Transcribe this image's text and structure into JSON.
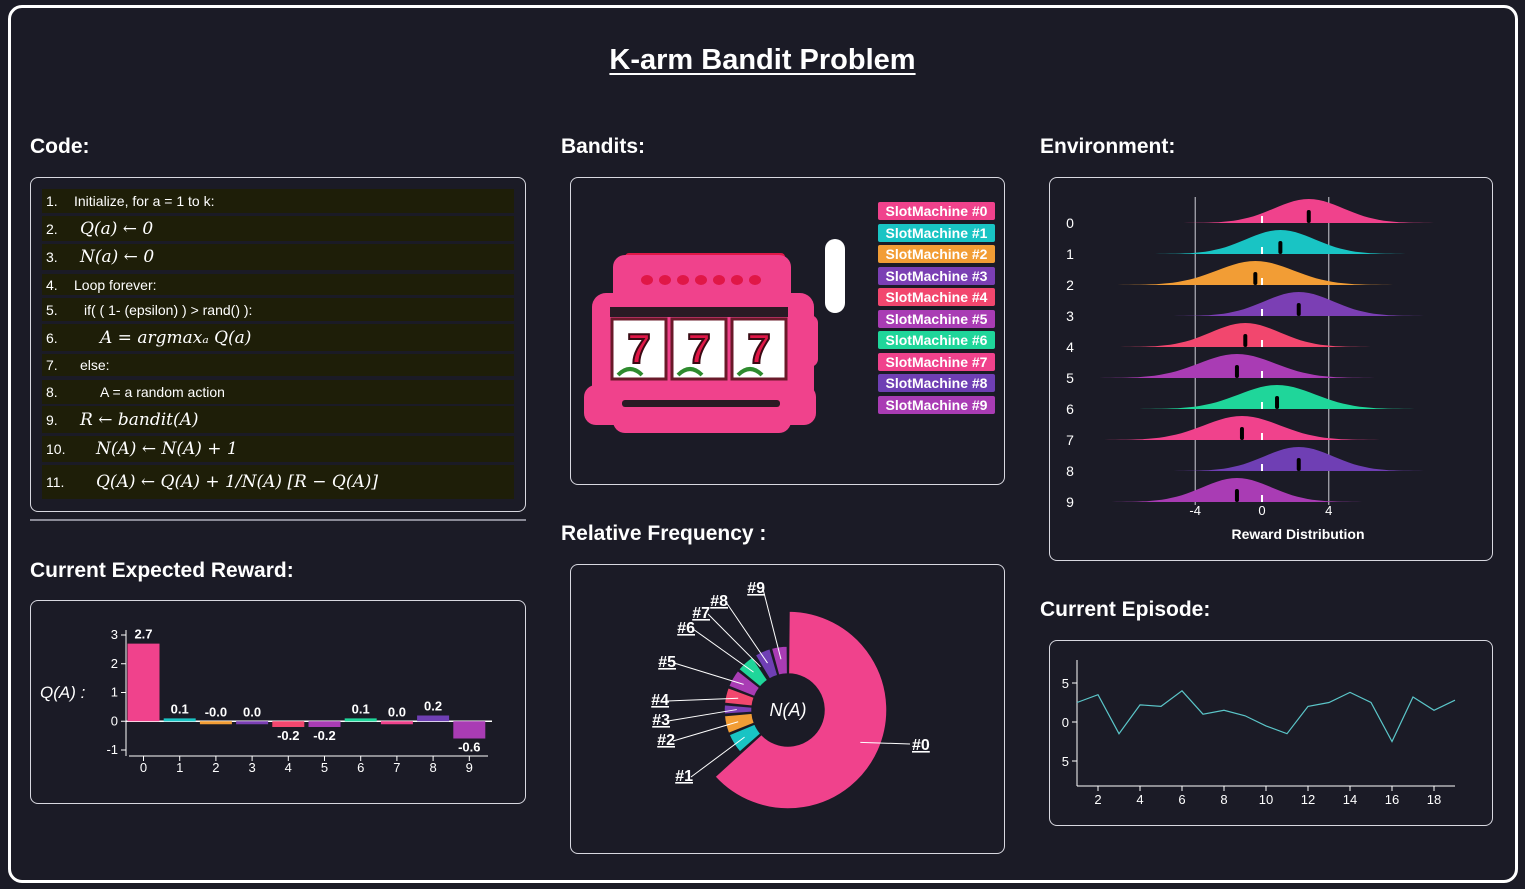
{
  "page": {
    "title": "K-arm Bandit Problem",
    "sections": {
      "code": "Code:",
      "bandits": "Bandits:",
      "environment": "Environment:",
      "expected_reward": "Current Expected Reward:",
      "relative_frequency": "Relative Frequency :",
      "current_episode": "Current Episode:"
    }
  },
  "code_lines": [
    {
      "num": "1.",
      "text": "Initialize, for a = 1 to k:"
    },
    {
      "num": "2.",
      "text": "Q(a) ← 0"
    },
    {
      "num": "3.",
      "text": "N(a) ← 0"
    },
    {
      "num": "4.",
      "text": "Loop forever:"
    },
    {
      "num": "5.",
      "text": "if( ( 1- (epsilon) ) > rand() ):"
    },
    {
      "num": "6.",
      "text": "A = argmaxₐ Q(a)"
    },
    {
      "num": "7.",
      "text": "else:"
    },
    {
      "num": "8.",
      "text": "A = a random action"
    },
    {
      "num": "9.",
      "text": "R ← bandit(A)"
    },
    {
      "num": "10.",
      "text": "N(A) ← N(A) + 1"
    },
    {
      "num": "11.",
      "text": "Q(A) ← Q(A) + 1/N(A) [R − Q(A)]"
    }
  ],
  "colors": [
    "#f0428c",
    "#19c4c4",
    "#f29d35",
    "#7b3fb4",
    "#f2476e",
    "#a93cb4",
    "#1fd69a",
    "#f0428c",
    "#6f3fb4",
    "#a93cb4"
  ],
  "slot_machines": [
    "SlotMachine #0",
    "SlotMachine #1",
    "SlotMachine #2",
    "SlotMachine #3",
    "SlotMachine #4",
    "SlotMachine #5",
    "SlotMachine #6",
    "SlotMachine #7",
    "SlotMachine #8",
    "SlotMachine #9"
  ],
  "slot_reels": [
    "7",
    "7",
    "7"
  ],
  "chart_data": [
    {
      "type": "bar",
      "ylabel": "Q(A) :",
      "categories": [
        "0",
        "1",
        "2",
        "3",
        "4",
        "5",
        "6",
        "7",
        "8",
        "9"
      ],
      "values": [
        2.7,
        0.1,
        -0.0,
        0.0,
        -0.2,
        -0.2,
        0.1,
        0.0,
        0.2,
        -0.6
      ],
      "labels": [
        "2.7",
        "0.1",
        "-0.0",
        "0.0",
        "-0.2",
        "-0.2",
        "0.1",
        "0.0",
        "0.2",
        "-0.6"
      ],
      "yticks": [
        "3",
        "2",
        "1",
        "0",
        "-1"
      ],
      "ylim": [
        -1,
        3
      ]
    },
    {
      "type": "pie",
      "center_label": "N(A)",
      "slices": [
        {
          "label": "#0",
          "value": 58
        },
        {
          "label": "#1",
          "value": 5
        },
        {
          "label": "#2",
          "value": 4.5
        },
        {
          "label": "#3",
          "value": 2.5
        },
        {
          "label": "#4",
          "value": 4
        },
        {
          "label": "#5",
          "value": 4.5
        },
        {
          "label": "#6",
          "value": 4.5
        },
        {
          "label": "#7",
          "value": 0.5
        },
        {
          "label": "#8",
          "value": 4
        },
        {
          "label": "#9",
          "value": 4
        }
      ]
    },
    {
      "type": "area",
      "title": "Environment",
      "xlabel": "Reward Distribution",
      "xticks": [
        "-4",
        "0",
        "4"
      ],
      "categories": [
        "0",
        "1",
        "2",
        "3",
        "4",
        "5",
        "6",
        "7",
        "8",
        "9"
      ],
      "means": [
        0.0,
        0.0,
        0.0,
        0.0,
        0.0,
        0.0,
        0.0,
        0.0,
        0.0,
        0.0
      ],
      "markers": [
        2.8,
        1.1,
        -0.4,
        2.2,
        -1.0,
        -1.5,
        0.9,
        -1.2,
        2.2,
        -1.5
      ],
      "widths": [
        5.0,
        5.0,
        5.5,
        5.0,
        5.0,
        5.5,
        5.5,
        5.5,
        5.0,
        5.0
      ]
    },
    {
      "type": "line",
      "title": "Current Episode",
      "x": [
        1,
        2,
        3,
        4,
        5,
        6,
        7,
        8,
        9,
        10,
        11,
        12,
        13,
        14,
        15,
        16,
        17,
        18,
        19
      ],
      "y": [
        2.5,
        3.5,
        -1.5,
        2.2,
        2.0,
        4.0,
        1.0,
        1.5,
        0.8,
        -0.5,
        -1.5,
        2.0,
        2.5,
        3.8,
        2.5,
        -2.5,
        3.2,
        1.5,
        2.8
      ],
      "xticks": [
        "2",
        "4",
        "6",
        "8",
        "10",
        "12",
        "14",
        "16",
        "18"
      ],
      "yticks": [
        "5",
        "0",
        "5"
      ],
      "ylim": [
        -8,
        8
      ]
    }
  ]
}
